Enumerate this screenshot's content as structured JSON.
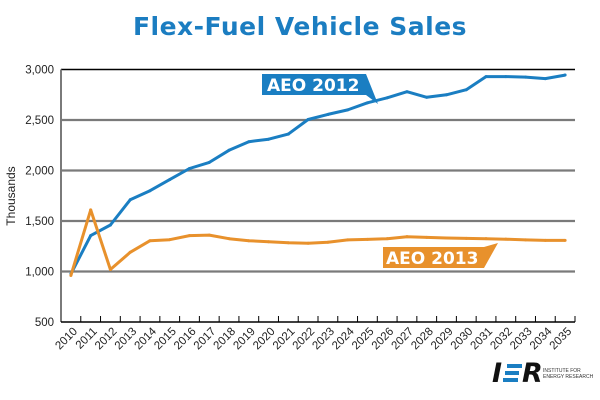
{
  "chart_data": {
    "type": "line",
    "title": "Flex-Fuel Vehicle Sales",
    "xlabel": "",
    "ylabel": "Thousands",
    "ylim": [
      500,
      3000
    ],
    "yticks": [
      500,
      1000,
      1500,
      2000,
      2500,
      3000
    ],
    "ytick_labels": [
      "500",
      "1,000",
      "1,500",
      "2,000",
      "2,500",
      "3,000"
    ],
    "grid": true,
    "categories": [
      "2010",
      "2011",
      "2012",
      "2013",
      "2014",
      "2015",
      "2016",
      "2017",
      "2018",
      "2019",
      "2020",
      "2021",
      "2022",
      "2023",
      "2024",
      "2025",
      "2026",
      "2027",
      "2028",
      "2029",
      "2030",
      "2031",
      "2032",
      "2033",
      "2034",
      "2035"
    ],
    "series": [
      {
        "name": "AEO 2012",
        "color": "#1a7ec2",
        "values": [
          975,
          1355,
          1460,
          1710,
          1800,
          1910,
          2020,
          2080,
          2200,
          2285,
          2310,
          2360,
          2505,
          2555,
          2600,
          2670,
          2720,
          2780,
          2725,
          2750,
          2800,
          2930,
          2930,
          2925,
          2910,
          2945
        ]
      },
      {
        "name": "AEO 2013",
        "color": "#e8912c",
        "values": [
          960,
          1610,
          1020,
          1190,
          1305,
          1315,
          1355,
          1360,
          1325,
          1305,
          1295,
          1285,
          1280,
          1290,
          1313,
          1318,
          1325,
          1345,
          1338,
          1332,
          1328,
          1325,
          1320,
          1313,
          1308,
          1308
        ]
      }
    ],
    "annotations": [
      "AEO 2012",
      "AEO 2013"
    ]
  },
  "logo": {
    "mark": "IER",
    "line1": "INSTITUTE FOR",
    "line2": "ENERGY RESEARCH"
  }
}
